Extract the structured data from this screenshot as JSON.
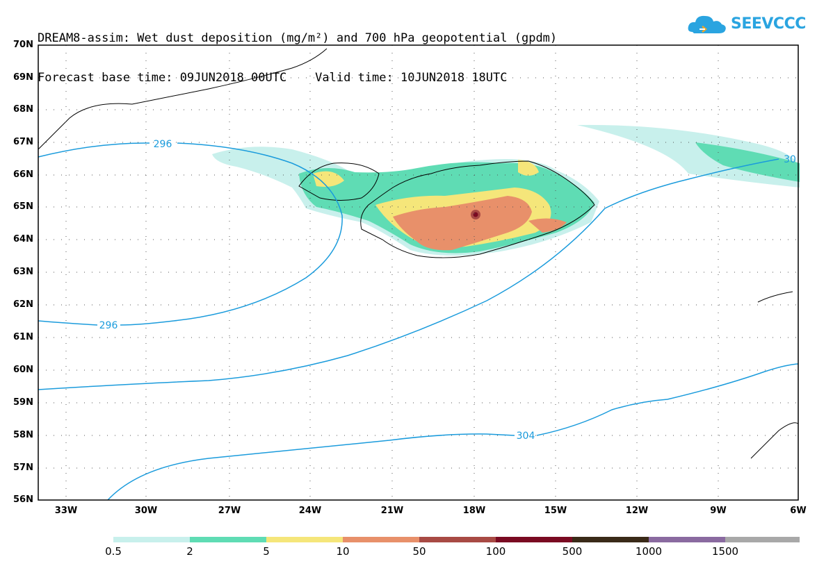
{
  "header": {
    "title_line1": "DREAM8-assim: Wet dust deposition (mg/m²) and 700 hPa geopotential (gpdm)",
    "title_line2": "Forecast base time: 09JUN2018 00UTC    Valid time: 10JUN2018 18UTC"
  },
  "logo": {
    "text": "SEEVCCC",
    "icon": "cloud-icon",
    "color": "#2aa4e0"
  },
  "map": {
    "lat_labels": [
      "70N",
      "69N",
      "68N",
      "67N",
      "66N",
      "65N",
      "64N",
      "63N",
      "62N",
      "61N",
      "60N",
      "59N",
      "58N",
      "57N",
      "56N"
    ],
    "lon_labels": [
      "33W",
      "30W",
      "27W",
      "24W",
      "21W",
      "18W",
      "15W",
      "12W",
      "9W",
      "6W"
    ],
    "contour_labels": [
      "296",
      "296",
      "304",
      "30"
    ],
    "contour_color": "#1a9bdc",
    "region": "Iceland",
    "grid": "dotted"
  },
  "legend": {
    "labels": [
      "0.5",
      "2",
      "5",
      "10",
      "50",
      "100",
      "500",
      "1000",
      "1500"
    ],
    "colors": [
      "#c8f0ec",
      "#5fdcb4",
      "#f5e67a",
      "#e8906a",
      "#a84a44",
      "#7a0a22",
      "#3a2a18",
      "#8a6aa0",
      "#a8a8a8"
    ]
  }
}
